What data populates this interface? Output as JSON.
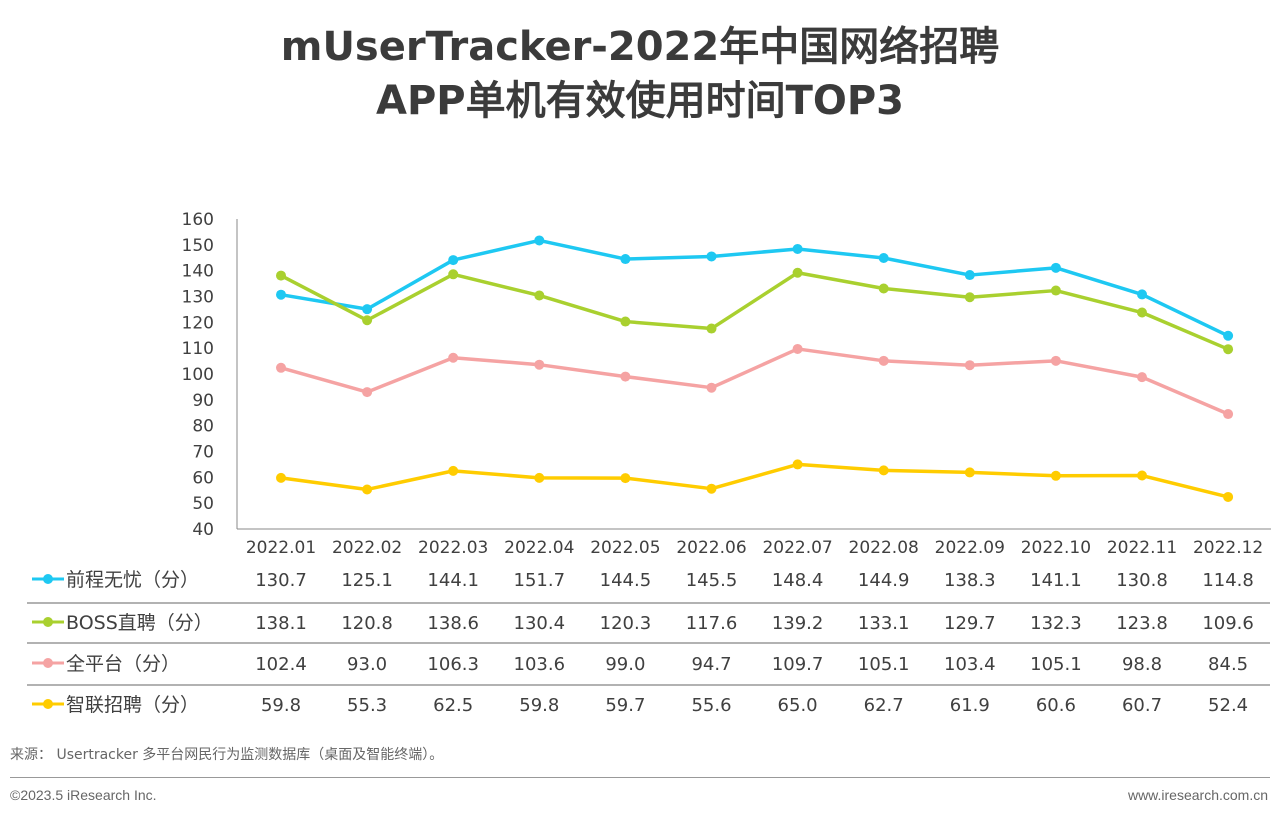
{
  "title_lines": [
    "mUserTracker-2022年中国网络招聘",
    "APP单机有效使用时间TOP3"
  ],
  "chart_data": {
    "type": "line",
    "title": "mUserTracker-2022年中国网络招聘APP单机有效使用时间TOP3",
    "categories": [
      "2022.01",
      "2022.02",
      "2022.03",
      "2022.04",
      "2022.05",
      "2022.06",
      "2022.07",
      "2022.08",
      "2022.09",
      "2022.10",
      "2022.11",
      "2022.12"
    ],
    "ylim": [
      40,
      160
    ],
    "yticks": [
      40,
      50,
      60,
      70,
      80,
      90,
      100,
      110,
      120,
      130,
      140,
      150,
      160
    ],
    "grid": false,
    "legend": "table-left",
    "series": [
      {
        "name": "前程无忧（分）",
        "color": "#1ec8f2",
        "values": [
          130.7,
          125.1,
          144.1,
          151.7,
          144.5,
          145.5,
          148.4,
          144.9,
          138.3,
          141.1,
          130.8,
          114.8
        ]
      },
      {
        "name": "BOSS直聘（分）",
        "color": "#a9d02f",
        "values": [
          138.1,
          120.8,
          138.6,
          130.4,
          120.3,
          117.6,
          139.2,
          133.1,
          129.7,
          132.3,
          123.8,
          109.6
        ]
      },
      {
        "name": "全平台（分）",
        "color": "#f5a3a3",
        "values": [
          102.4,
          93.0,
          106.3,
          103.6,
          99.0,
          94.7,
          109.7,
          105.1,
          103.4,
          105.1,
          98.8,
          84.5
        ]
      },
      {
        "name": "智联招聘（分）",
        "color": "#ffcc00",
        "values": [
          59.8,
          55.3,
          62.5,
          59.8,
          59.7,
          55.6,
          65.0,
          62.7,
          61.9,
          60.6,
          60.7,
          52.4
        ]
      }
    ]
  },
  "footer": {
    "source": "来源： Usertracker 多平台网民行为监测数据库（桌面及智能终端）。",
    "copyright": "©2023.5 iResearch Inc.",
    "website": "www.iresearch.com.cn"
  }
}
